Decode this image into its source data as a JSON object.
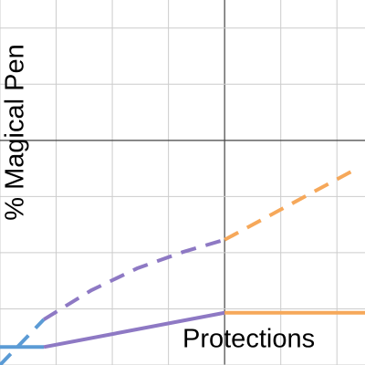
{
  "chart_data": {
    "type": "line",
    "xlabel": "Protections",
    "ylabel": "% Magical Pen",
    "xlim": [
      -4,
      2.5
    ],
    "ylim": [
      -4,
      2.5
    ],
    "xticks": [
      -4,
      -3,
      -2,
      -1,
      0,
      1,
      2
    ],
    "yticks": [
      -4,
      -3,
      -2,
      -1,
      0,
      1,
      2
    ],
    "grid": true,
    "series": [
      {
        "color": "#5b9bd5",
        "dashed": true,
        "x": [
          -4,
          -3.22
        ],
        "values": [
          -4,
          -3.19
        ]
      },
      {
        "color": "#5b9bd5",
        "dashed": false,
        "x": [
          -4,
          -3.22
        ],
        "values": [
          -3.68,
          -3.68
        ]
      },
      {
        "color": "#8e79c4",
        "dashed": true,
        "x": [
          -3.22,
          -2.375,
          -1.56,
          -0.75,
          0
        ],
        "values": [
          -3.19,
          -2.67,
          -2.28,
          -1.99,
          -1.77
        ]
      },
      {
        "color": "#8e79c4",
        "dashed": false,
        "x": [
          -3.22,
          0
        ],
        "values": [
          -3.68,
          -3.07
        ]
      },
      {
        "color": "#f6a85a",
        "dashed": false,
        "x": [
          0,
          2.5
        ],
        "values": [
          -3.07,
          -3.07
        ]
      },
      {
        "color": "#f6a85a",
        "dashed": true,
        "x": [
          0,
          2.34
        ],
        "values": [
          -1.77,
          -0.51
        ]
      }
    ]
  }
}
